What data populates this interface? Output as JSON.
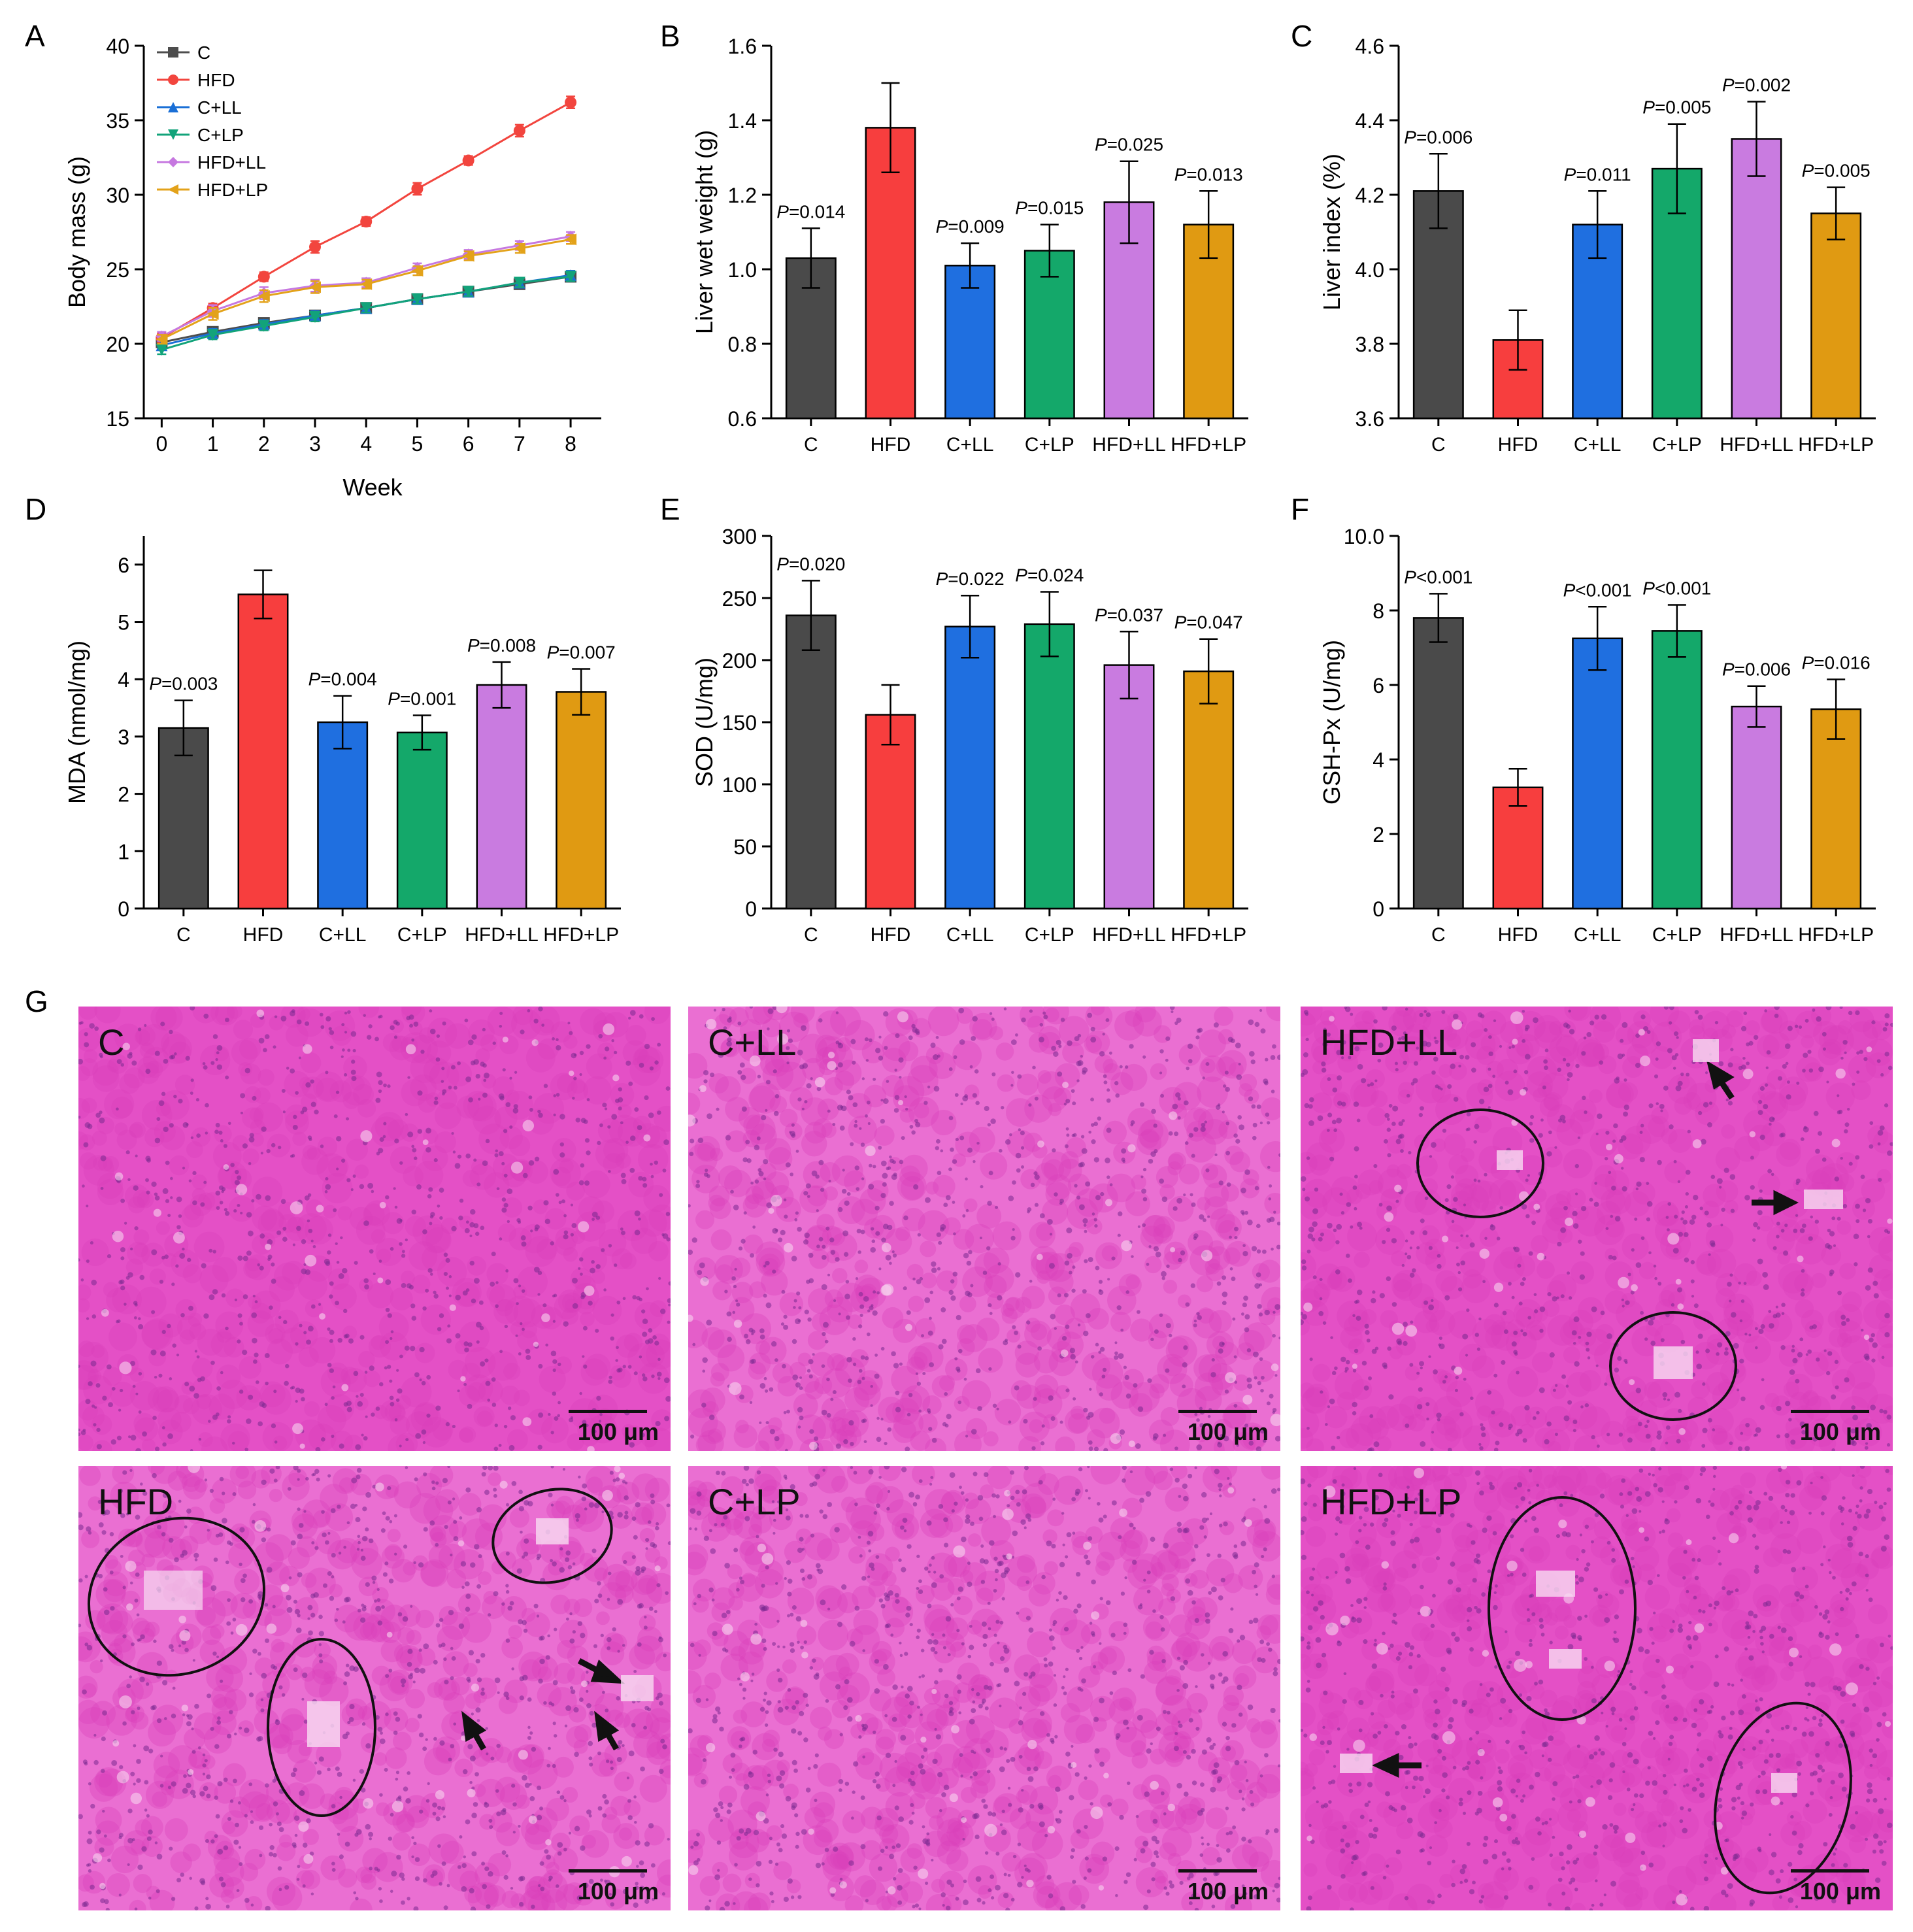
{
  "panels": {
    "A": "A",
    "B": "B",
    "C": "C",
    "D": "D",
    "E": "E",
    "F": "F",
    "G": "G"
  },
  "chart_data": [
    {
      "id": "A",
      "type": "line",
      "title": "",
      "xlabel": "Week",
      "ylabel": "Body mass (g)",
      "x": [
        0,
        1,
        2,
        3,
        4,
        5,
        6,
        7,
        8
      ],
      "xticks": [
        0,
        1,
        2,
        3,
        4,
        5,
        6,
        7,
        8
      ],
      "ylim": [
        15,
        40
      ],
      "yticks": [
        15,
        20,
        25,
        30,
        35,
        40
      ],
      "legend_position": "top-left",
      "series": [
        {
          "name": "C",
          "color": "#4d4d4d",
          "marker": "square",
          "values": [
            20.1,
            20.8,
            21.4,
            21.9,
            22.4,
            23.0,
            23.5,
            24.0,
            24.5
          ],
          "errors": [
            0.3,
            0.3,
            0.3,
            0.3,
            0.3,
            0.3,
            0.3,
            0.3,
            0.3
          ]
        },
        {
          "name": "HFD",
          "color": "#f2453e",
          "marker": "circle",
          "values": [
            20.4,
            22.4,
            24.5,
            26.5,
            28.2,
            30.4,
            32.3,
            34.3,
            36.2
          ],
          "errors": [
            0.3,
            0.3,
            0.3,
            0.4,
            0.3,
            0.4,
            0.3,
            0.4,
            0.4
          ]
        },
        {
          "name": "C+LL",
          "color": "#1a6fd6",
          "marker": "triangle-up",
          "values": [
            19.9,
            20.7,
            21.3,
            21.9,
            22.4,
            23.0,
            23.5,
            24.1,
            24.6
          ],
          "errors": [
            0.3,
            0.3,
            0.3,
            0.3,
            0.3,
            0.3,
            0.3,
            0.3,
            0.3
          ]
        },
        {
          "name": "C+LP",
          "color": "#12a37a",
          "marker": "triangle-down",
          "values": [
            19.6,
            20.6,
            21.2,
            21.8,
            22.4,
            23.0,
            23.5,
            24.1,
            24.5
          ],
          "errors": [
            0.3,
            0.3,
            0.3,
            0.3,
            0.3,
            0.3,
            0.3,
            0.3,
            0.3
          ]
        },
        {
          "name": "HFD+LL",
          "color": "#c678e0",
          "marker": "diamond",
          "values": [
            20.5,
            22.2,
            23.4,
            23.9,
            24.1,
            25.1,
            26.0,
            26.6,
            27.2
          ],
          "errors": [
            0.3,
            0.4,
            0.4,
            0.4,
            0.3,
            0.3,
            0.3,
            0.3,
            0.3
          ]
        },
        {
          "name": "HFD+LP",
          "color": "#e3a21a",
          "marker": "triangle-left",
          "values": [
            20.3,
            22.0,
            23.2,
            23.8,
            24.0,
            24.9,
            25.9,
            26.4,
            27.0
          ],
          "errors": [
            0.3,
            0.4,
            0.4,
            0.4,
            0.3,
            0.3,
            0.3,
            0.3,
            0.3
          ]
        }
      ]
    },
    {
      "id": "B",
      "type": "bar",
      "ylabel": "Liver wet weight (g)",
      "xlabel": "",
      "categories": [
        "C",
        "HFD",
        "C+LL",
        "C+LP",
        "HFD+LL",
        "HFD+LP"
      ],
      "values": [
        1.03,
        1.38,
        1.01,
        1.05,
        1.18,
        1.12
      ],
      "errors": [
        0.08,
        0.12,
        0.06,
        0.07,
        0.11,
        0.09
      ],
      "p_values": [
        "=0.014",
        "",
        "=0.009",
        "=0.015",
        "=0.025",
        "=0.013"
      ],
      "ylim": [
        0.6,
        1.6
      ],
      "yticks": [
        0.6,
        0.8,
        1.0,
        1.2,
        1.4,
        1.6
      ],
      "ytick_labels": [
        "0.6",
        "0.8",
        "1.0",
        "1.2",
        "1.4",
        "1.6"
      ]
    },
    {
      "id": "C",
      "type": "bar",
      "ylabel": "Liver index (%)",
      "xlabel": "",
      "categories": [
        "C",
        "HFD",
        "C+LL",
        "C+LP",
        "HFD+LL",
        "HFD+LP"
      ],
      "values": [
        4.21,
        3.81,
        4.12,
        4.27,
        4.35,
        4.15
      ],
      "errors": [
        0.1,
        0.08,
        0.09,
        0.12,
        0.1,
        0.07
      ],
      "p_values": [
        "=0.006",
        "",
        "=0.011",
        "=0.005",
        "=0.002",
        "=0.005"
      ],
      "ylim": [
        3.6,
        4.6
      ],
      "yticks": [
        3.6,
        3.8,
        4.0,
        4.2,
        4.4,
        4.6
      ],
      "ytick_labels": [
        "3.6",
        "3.8",
        "4.0",
        "4.2",
        "4.4",
        "4.6"
      ]
    },
    {
      "id": "D",
      "type": "bar",
      "ylabel": "MDA (nmol/mg)",
      "xlabel": "",
      "categories": [
        "C",
        "HFD",
        "C+LL",
        "C+LP",
        "HFD+LL",
        "HFD+LP"
      ],
      "values": [
        3.15,
        5.48,
        3.25,
        3.07,
        3.9,
        3.78
      ],
      "errors": [
        0.48,
        0.42,
        0.46,
        0.3,
        0.4,
        0.4
      ],
      "p_values": [
        "=0.003",
        "",
        "=0.004",
        "=0.001",
        "=0.008",
        "=0.007"
      ],
      "ylim": [
        0,
        6.5
      ],
      "yticks": [
        0,
        1,
        2,
        3,
        4,
        5,
        6
      ],
      "ytick_labels": [
        "0",
        "1",
        "2",
        "3",
        "4",
        "5",
        "6"
      ]
    },
    {
      "id": "E",
      "type": "bar",
      "ylabel": "SOD (U/mg)",
      "xlabel": "",
      "categories": [
        "C",
        "HFD",
        "C+LL",
        "C+LP",
        "HFD+LL",
        "HFD+LP"
      ],
      "values": [
        236,
        156,
        227,
        229,
        196,
        191
      ],
      "errors": [
        28,
        24,
        25,
        26,
        27,
        26
      ],
      "p_values": [
        "=0.020",
        "",
        "=0.022",
        "=0.024",
        "=0.037",
        "=0.047"
      ],
      "ylim": [
        0,
        300
      ],
      "yticks": [
        0,
        50,
        100,
        150,
        200,
        250,
        300
      ],
      "ytick_labels": [
        "0",
        "50",
        "100",
        "150",
        "200",
        "250",
        "300"
      ]
    },
    {
      "id": "F",
      "type": "bar",
      "ylabel": "GSH-Px (U/mg)",
      "xlabel": "",
      "categories": [
        "C",
        "HFD",
        "C+LL",
        "C+LP",
        "HFD+LL",
        "HFD+LP"
      ],
      "values": [
        7.8,
        3.25,
        7.25,
        7.45,
        5.42,
        5.35
      ],
      "errors": [
        0.65,
        0.5,
        0.85,
        0.7,
        0.55,
        0.8
      ],
      "p_values": [
        "<0.001",
        "",
        "<0.001",
        "<0.001",
        "=0.006",
        "=0.016"
      ],
      "ylim": [
        0,
        10
      ],
      "yticks": [
        0,
        2,
        4,
        6,
        8,
        10
      ],
      "ytick_labels": [
        "0",
        "2",
        "4",
        "6",
        "8",
        "10.0"
      ]
    }
  ],
  "bar_colors": [
    "#4a4a4a",
    "#f73e3e",
    "#1f6fe0",
    "#14a86a",
    "#c97be0",
    "#e09a12"
  ],
  "p_prefix": "P",
  "histology": {
    "scale_label": "100 μm",
    "panels": [
      {
        "label": "C"
      },
      {
        "label": "C+LL"
      },
      {
        "label": "HFD+LL"
      },
      {
        "label": "HFD"
      },
      {
        "label": "C+LP"
      },
      {
        "label": "HFD+LP"
      }
    ]
  }
}
